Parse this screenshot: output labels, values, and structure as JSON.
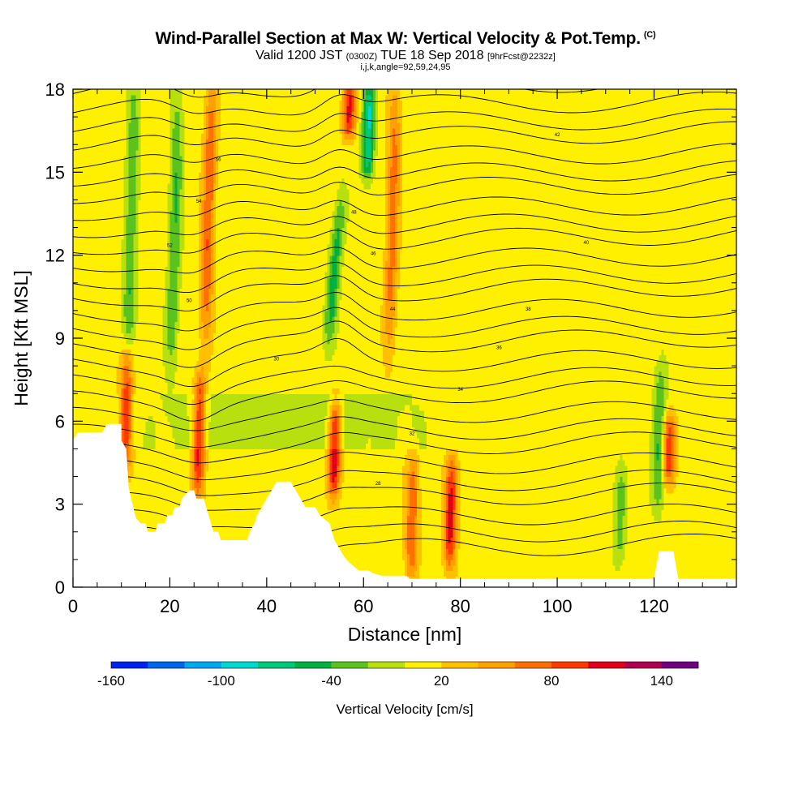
{
  "title": "Wind-Parallel Section at Max W: Vertical Velocity & Pot.Temp.",
  "copyright_mark": "(C)",
  "subtitle": {
    "valid": "Valid 1200 JST",
    "zulu": "(0300Z)",
    "date": "TUE 18 Sep 2018",
    "forecast": "[9hrFcst@2232z]"
  },
  "subtitle2": "i,j,k,angle=92,59,24,95",
  "colors": {
    "terrain": "#ffffff",
    "contour": "#000000",
    "frame": "#000000"
  },
  "chart_data": {
    "type": "heatmap",
    "xlabel": "Distance [nm]",
    "ylabel": "Height [Kft MSL]",
    "xlim": [
      0,
      137
    ],
    "ylim": [
      0,
      18
    ],
    "x_ticks": [
      0,
      20,
      40,
      60,
      80,
      100,
      120
    ],
    "y_ticks": [
      0,
      3,
      6,
      9,
      12,
      15,
      18
    ],
    "x_minor_step": 5,
    "y_minor_step": 1,
    "grid": false,
    "colorbar": {
      "title": "Vertical Velocity [cm/s]",
      "ticks": [
        -160,
        -100,
        -40,
        20,
        80,
        140
      ],
      "bounds": [
        -160,
        160
      ],
      "step": 20,
      "colors": [
        "#0022ee",
        "#0066ee",
        "#00a8f0",
        "#00d8d0",
        "#00c87a",
        "#00b040",
        "#5cc21e",
        "#b8e00e",
        "#fff000",
        "#ffc000",
        "#ffa000",
        "#ff7000",
        "#ff3a00",
        "#e0001a",
        "#b00050",
        "#700080"
      ],
      "orientation": "horizontal",
      "position": "bottom"
    },
    "background_w_cm_s": 10,
    "features": [
      {
        "kind": "updraft",
        "x": 11,
        "z_bottom": 4.5,
        "z_top": 8.5,
        "peak_w": 90
      },
      {
        "kind": "updraft",
        "x": 26,
        "z_bottom": 3.5,
        "z_top": 7.5,
        "peak_w": 90
      },
      {
        "kind": "updraft",
        "x": 54,
        "z_bottom": 3.5,
        "z_top": 6.5,
        "peak_w": 100
      },
      {
        "kind": "updraft",
        "x": 78,
        "z_bottom": 1.0,
        "z_top": 4.5,
        "peak_w": 100
      },
      {
        "kind": "updraft",
        "x": 70,
        "z_bottom": 0.5,
        "z_top": 4.5,
        "peak_w": 70
      },
      {
        "kind": "updraft",
        "x": 57,
        "z_bottom": 16.5,
        "z_top": 18,
        "peak_w": 90
      },
      {
        "kind": "updraft",
        "x": 66,
        "z_bottom": 9,
        "z_top": 18,
        "peak_w": 60
      },
      {
        "kind": "updraft",
        "x": 28,
        "z_bottom": 9,
        "z_top": 18,
        "peak_w": 70
      },
      {
        "kind": "updraft",
        "x": 123,
        "z_bottom": 4,
        "z_top": 6,
        "peak_w": 80
      },
      {
        "kind": "downdraft",
        "x": 54,
        "z_bottom": 9,
        "z_top": 14,
        "peak_w": -60
      },
      {
        "kind": "downdraft",
        "x": 61,
        "z_bottom": 15,
        "z_top": 18,
        "peak_w": -90
      },
      {
        "kind": "downdraft",
        "x": 12,
        "z_bottom": 8,
        "z_top": 18,
        "peak_w": -50
      },
      {
        "kind": "downdraft",
        "x": 21,
        "z_bottom": 8,
        "z_top": 18,
        "peak_w": -50
      },
      {
        "kind": "downdraft",
        "x": 121,
        "z_bottom": 3,
        "z_top": 8,
        "peak_w": -50
      },
      {
        "kind": "downdraft",
        "x": 113,
        "z_bottom": 1,
        "z_top": 4,
        "peak_w": -40
      }
    ],
    "terrain_profile_kft": [
      [
        0,
        5.3
      ],
      [
        1,
        5.6
      ],
      [
        6,
        5.6
      ],
      [
        7,
        5.9
      ],
      [
        10,
        5.9
      ],
      [
        10,
        5.3
      ],
      [
        11,
        5.0
      ],
      [
        11.5,
        3.6
      ],
      [
        12,
        3.2
      ],
      [
        13,
        2.5
      ],
      [
        14,
        2.3
      ],
      [
        15,
        2.3
      ],
      [
        15.5,
        2.0
      ],
      [
        17,
        2.0
      ],
      [
        17.5,
        2.3
      ],
      [
        19,
        2.3
      ],
      [
        19.5,
        2.6
      ],
      [
        20.5,
        2.6
      ],
      [
        21,
        2.9
      ],
      [
        22,
        2.9
      ],
      [
        22.5,
        3.2
      ],
      [
        24,
        3.5
      ],
      [
        25,
        3.5
      ],
      [
        25.5,
        3.2
      ],
      [
        27,
        3.2
      ],
      [
        27.5,
        2.9
      ],
      [
        28,
        2.6
      ],
      [
        29,
        2.0
      ],
      [
        30,
        2.0
      ],
      [
        30.5,
        1.7
      ],
      [
        36,
        1.7
      ],
      [
        36.5,
        2.0
      ],
      [
        37.5,
        2.3
      ],
      [
        38,
        2.6
      ],
      [
        39,
        2.9
      ],
      [
        40,
        3.2
      ],
      [
        41,
        3.5
      ],
      [
        42,
        3.8
      ],
      [
        45,
        3.8
      ],
      [
        46,
        3.5
      ],
      [
        47,
        3.2
      ],
      [
        48,
        2.9
      ],
      [
        50,
        2.9
      ],
      [
        51,
        2.6
      ],
      [
        53,
        2.3
      ],
      [
        54,
        1.7
      ],
      [
        55,
        1.4
      ],
      [
        56,
        1.1
      ],
      [
        57,
        0.9
      ],
      [
        59,
        0.6
      ],
      [
        61,
        0.6
      ],
      [
        62,
        0.5
      ],
      [
        64,
        0.4
      ],
      [
        69,
        0.4
      ],
      [
        69.5,
        0.3
      ],
      [
        120,
        0.3
      ],
      [
        121,
        1.3
      ],
      [
        124,
        1.3
      ],
      [
        125,
        0.3
      ],
      [
        137,
        0.3
      ]
    ],
    "contour_labels": [
      "56",
      "54",
      "52",
      "50",
      "48",
      "46",
      "44",
      "42",
      "40",
      "38",
      "36",
      "34",
      "32",
      "30",
      "28"
    ],
    "theta_contour_note": "potential temperature isentropes, K-offset labels"
  }
}
